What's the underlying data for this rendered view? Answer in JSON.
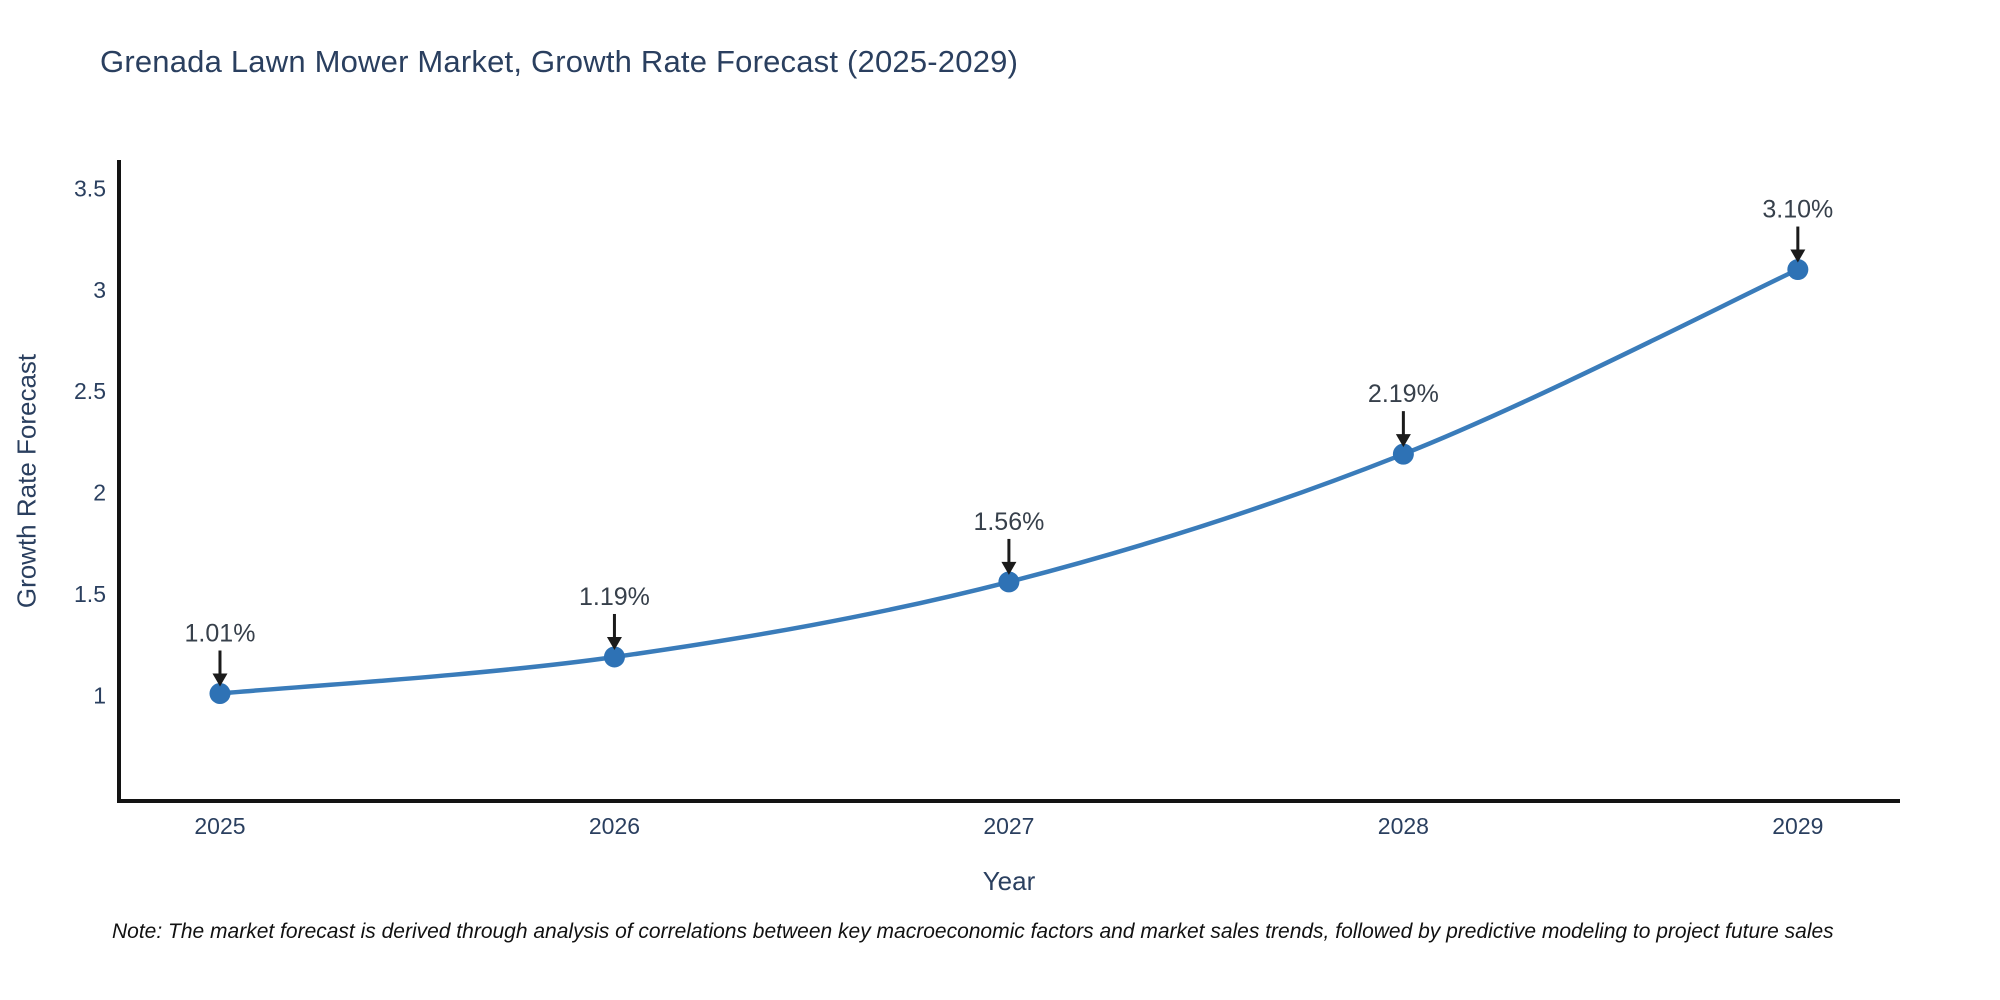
{
  "title": "Grenada Lawn Mower Market, Growth Rate Forecast (2025-2029)",
  "note": "Note: The market forecast is derived through analysis of correlations between key macroeconomic factors and market sales trends, followed by predictive modeling to project future sales",
  "chart_data": {
    "type": "line",
    "title": "Grenada Lawn Mower Market, Growth Rate Forecast (2025-2029)",
    "xlabel": "Year",
    "ylabel": "Growth Rate Forecast",
    "x": [
      2025,
      2026,
      2027,
      2028,
      2029
    ],
    "values": [
      1.01,
      1.19,
      1.56,
      2.19,
      3.1
    ],
    "point_labels": [
      "1.01%",
      "1.19%",
      "1.56%",
      "2.19%",
      "3.10%"
    ],
    "xtick_labels": [
      "2025",
      "2026",
      "2027",
      "2028",
      "2029"
    ],
    "ytick_values": [
      1,
      1.5,
      2,
      2.5,
      3,
      3.5
    ],
    "ytick_labels": [
      "1",
      "1.5",
      "2",
      "2.5",
      "3",
      "3.5"
    ],
    "xlim": [
      2024.744,
      2029.259
    ],
    "ylim": [
      0.48,
      3.64
    ],
    "grid": false,
    "legend_position": "none",
    "line_color": "#3a7cba",
    "marker_color": "#2e72b5",
    "axis_color": "#131313",
    "tick_color": "#2a3f5f",
    "annotation_text_color": "#37404b",
    "annotation_arrow_color": "#1b1b1b"
  }
}
